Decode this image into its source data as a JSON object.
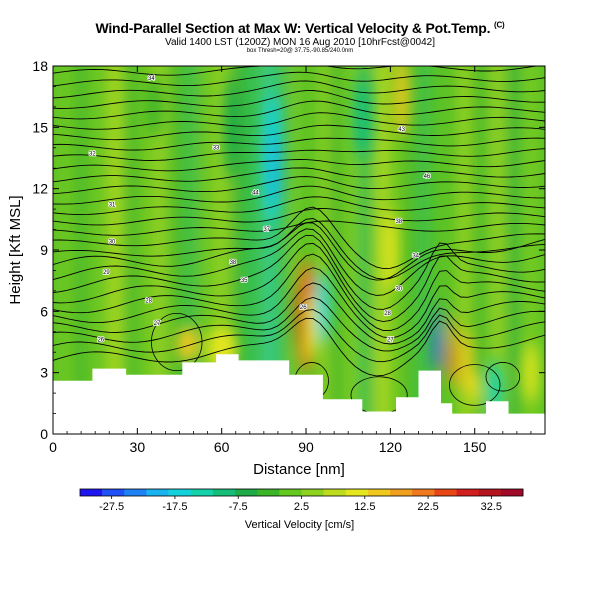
{
  "header": {
    "title": "Wind-Parallel Section at Max W: Vertical Velocity & Pot.Temp.",
    "copyright": "(C)",
    "subtitle": "Valid 1400 LST (1200Z) MON 16 Aug 2010 [10hrFcst@0042]",
    "subsubtitle": "box Thresh=20@ 37.75,-90.85/240.0nm"
  },
  "chart_data": {
    "type": "heatmap",
    "title": "Wind-Parallel Section at Max W: Vertical Velocity & Pot.Temp.",
    "xlabel": "Distance [nm]",
    "ylabel": "Height [Kft MSL]",
    "xlim": [
      0,
      175
    ],
    "ylim": [
      0,
      18
    ],
    "xticks": [
      "0",
      "30",
      "60",
      "90",
      "120",
      "150"
    ],
    "yticks": [
      "0",
      "3",
      "6",
      "9",
      "12",
      "15",
      "18"
    ],
    "colorbar": {
      "label": "Vertical Velocity [cm/s]",
      "ticks": [
        "-27.5",
        "-17.5",
        "-7.5",
        "2.5",
        "12.5",
        "22.5",
        "32.5"
      ],
      "colors": [
        "#1e14f0",
        "#1e50f5",
        "#1e82f5",
        "#19b4f0",
        "#14d2dc",
        "#14d2aa",
        "#14be78",
        "#1eaa46",
        "#3cb428",
        "#64c81e",
        "#8cd21e",
        "#bedc1e",
        "#e6e61e",
        "#f0c81e",
        "#f0a01e",
        "#f0781e",
        "#e64614",
        "#d21e1e",
        "#b4141e",
        "#a00a28"
      ]
    },
    "terrain_kft": [
      [
        0,
        2.6
      ],
      [
        14,
        2.6
      ],
      [
        14,
        3.2
      ],
      [
        26,
        3.2
      ],
      [
        26,
        2.9
      ],
      [
        46,
        2.9
      ],
      [
        46,
        3.5
      ],
      [
        58,
        3.5
      ],
      [
        58,
        3.9
      ],
      [
        66,
        3.9
      ],
      [
        66,
        3.6
      ],
      [
        84,
        3.6
      ],
      [
        84,
        2.9
      ],
      [
        96,
        2.9
      ],
      [
        96,
        1.7
      ],
      [
        110,
        1.7
      ],
      [
        110,
        1.1
      ],
      [
        122,
        1.1
      ],
      [
        122,
        1.8
      ],
      [
        130,
        1.8
      ],
      [
        130,
        3.1
      ],
      [
        138,
        3.1
      ],
      [
        138,
        1.5
      ],
      [
        142,
        1.5
      ],
      [
        142,
        1.0
      ],
      [
        154,
        1.0
      ],
      [
        154,
        1.6
      ],
      [
        162,
        1.6
      ],
      [
        162,
        1.0
      ],
      [
        175,
        1.0
      ]
    ],
    "isotherm_labels": [
      {
        "x": 35,
        "y": 17.4,
        "text": "34"
      },
      {
        "x": 58,
        "y": 14.0,
        "text": "33"
      },
      {
        "x": 14,
        "y": 13.7,
        "text": "32"
      },
      {
        "x": 21,
        "y": 11.2,
        "text": "31"
      },
      {
        "x": 21,
        "y": 9.4,
        "text": "30"
      },
      {
        "x": 19,
        "y": 7.9,
        "text": "29"
      },
      {
        "x": 34,
        "y": 6.5,
        "text": "28"
      },
      {
        "x": 37,
        "y": 5.4,
        "text": "27"
      },
      {
        "x": 17,
        "y": 4.6,
        "text": "26"
      },
      {
        "x": 72,
        "y": 11.8,
        "text": "44"
      },
      {
        "x": 76,
        "y": 10.0,
        "text": "37"
      },
      {
        "x": 64,
        "y": 8.4,
        "text": "38"
      },
      {
        "x": 68,
        "y": 7.5,
        "text": "35"
      },
      {
        "x": 89,
        "y": 6.2,
        "text": "26"
      },
      {
        "x": 124,
        "y": 14.9,
        "text": "43"
      },
      {
        "x": 133,
        "y": 12.6,
        "text": "46"
      },
      {
        "x": 123,
        "y": 10.4,
        "text": "38"
      },
      {
        "x": 129,
        "y": 8.7,
        "text": "34"
      },
      {
        "x": 123,
        "y": 7.1,
        "text": "30"
      },
      {
        "x": 119,
        "y": 5.9,
        "text": "28"
      },
      {
        "x": 120,
        "y": 4.6,
        "text": "27"
      }
    ]
  }
}
